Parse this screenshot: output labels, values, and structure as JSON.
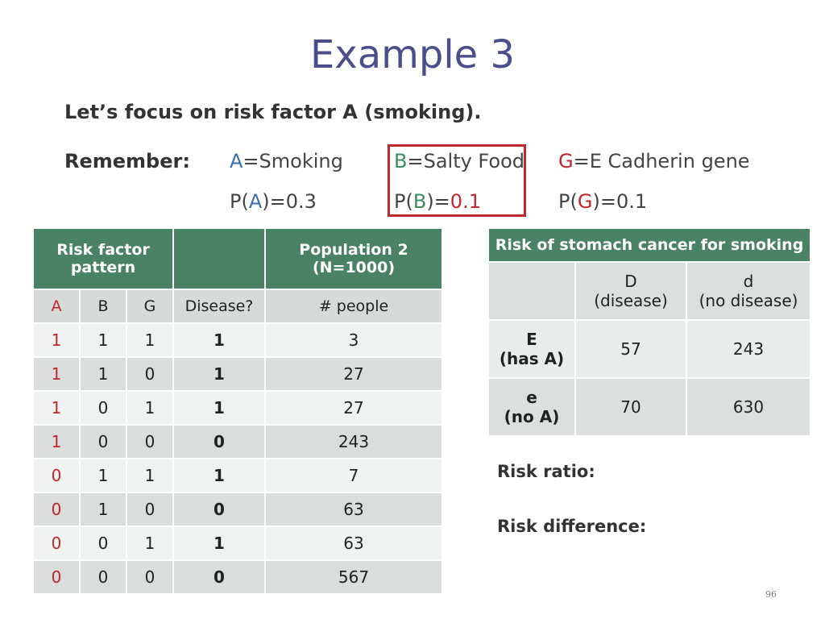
{
  "title": "Example 3",
  "subtitle": "Let’s focus on risk factor A (smoking).",
  "remember_label": "Remember:",
  "definitions": [
    {
      "letter": "A",
      "text": "=Smoking",
      "prob_prefix": "P(",
      "prob_suffix": ")=",
      "prob_value": "0.3"
    },
    {
      "letter": "B",
      "text": "=Salty Food",
      "prob_prefix": "P(",
      "prob_suffix": ")=",
      "prob_value": "0.1"
    },
    {
      "letter": "G",
      "text": "=E Cadherin gene",
      "prob_prefix": "P(",
      "prob_suffix": ")=",
      "prob_value": "0.1"
    }
  ],
  "left_table": {
    "header_top": {
      "risk_pattern": "Risk factor pattern",
      "population": "Population 2 (N=1000)"
    },
    "columns": [
      "A",
      "B",
      "G",
      "Disease?",
      "# people"
    ],
    "rows": [
      [
        "1",
        "1",
        "1",
        "1",
        "3"
      ],
      [
        "1",
        "1",
        "0",
        "1",
        "27"
      ],
      [
        "1",
        "0",
        "1",
        "1",
        "27"
      ],
      [
        "1",
        "0",
        "0",
        "0",
        "243"
      ],
      [
        "0",
        "1",
        "1",
        "1",
        "7"
      ],
      [
        "0",
        "1",
        "0",
        "0",
        "63"
      ],
      [
        "0",
        "0",
        "1",
        "1",
        "63"
      ],
      [
        "0",
        "0",
        "0",
        "0",
        "567"
      ]
    ]
  },
  "right_table": {
    "title": "Risk of stomach cancer for smoking",
    "col_headers": [
      {
        "line1": "D",
        "line2": "(disease)"
      },
      {
        "line1": "d",
        "line2": "(no disease)"
      }
    ],
    "rows": [
      {
        "line1": "E",
        "line2": "(has A)",
        "values": [
          "57",
          "243"
        ]
      },
      {
        "line1": "e",
        "line2": "(no A)",
        "values": [
          "70",
          "630"
        ]
      }
    ]
  },
  "risk_ratio_label": "Risk ratio:",
  "risk_difference_label": "Risk difference:",
  "page_number": "96",
  "colors": {
    "title": "#4a4f8c",
    "header_green": "#4a8266",
    "red": "#c0262c",
    "blue": "#3a6fb3",
    "green": "#3b8d5d"
  }
}
